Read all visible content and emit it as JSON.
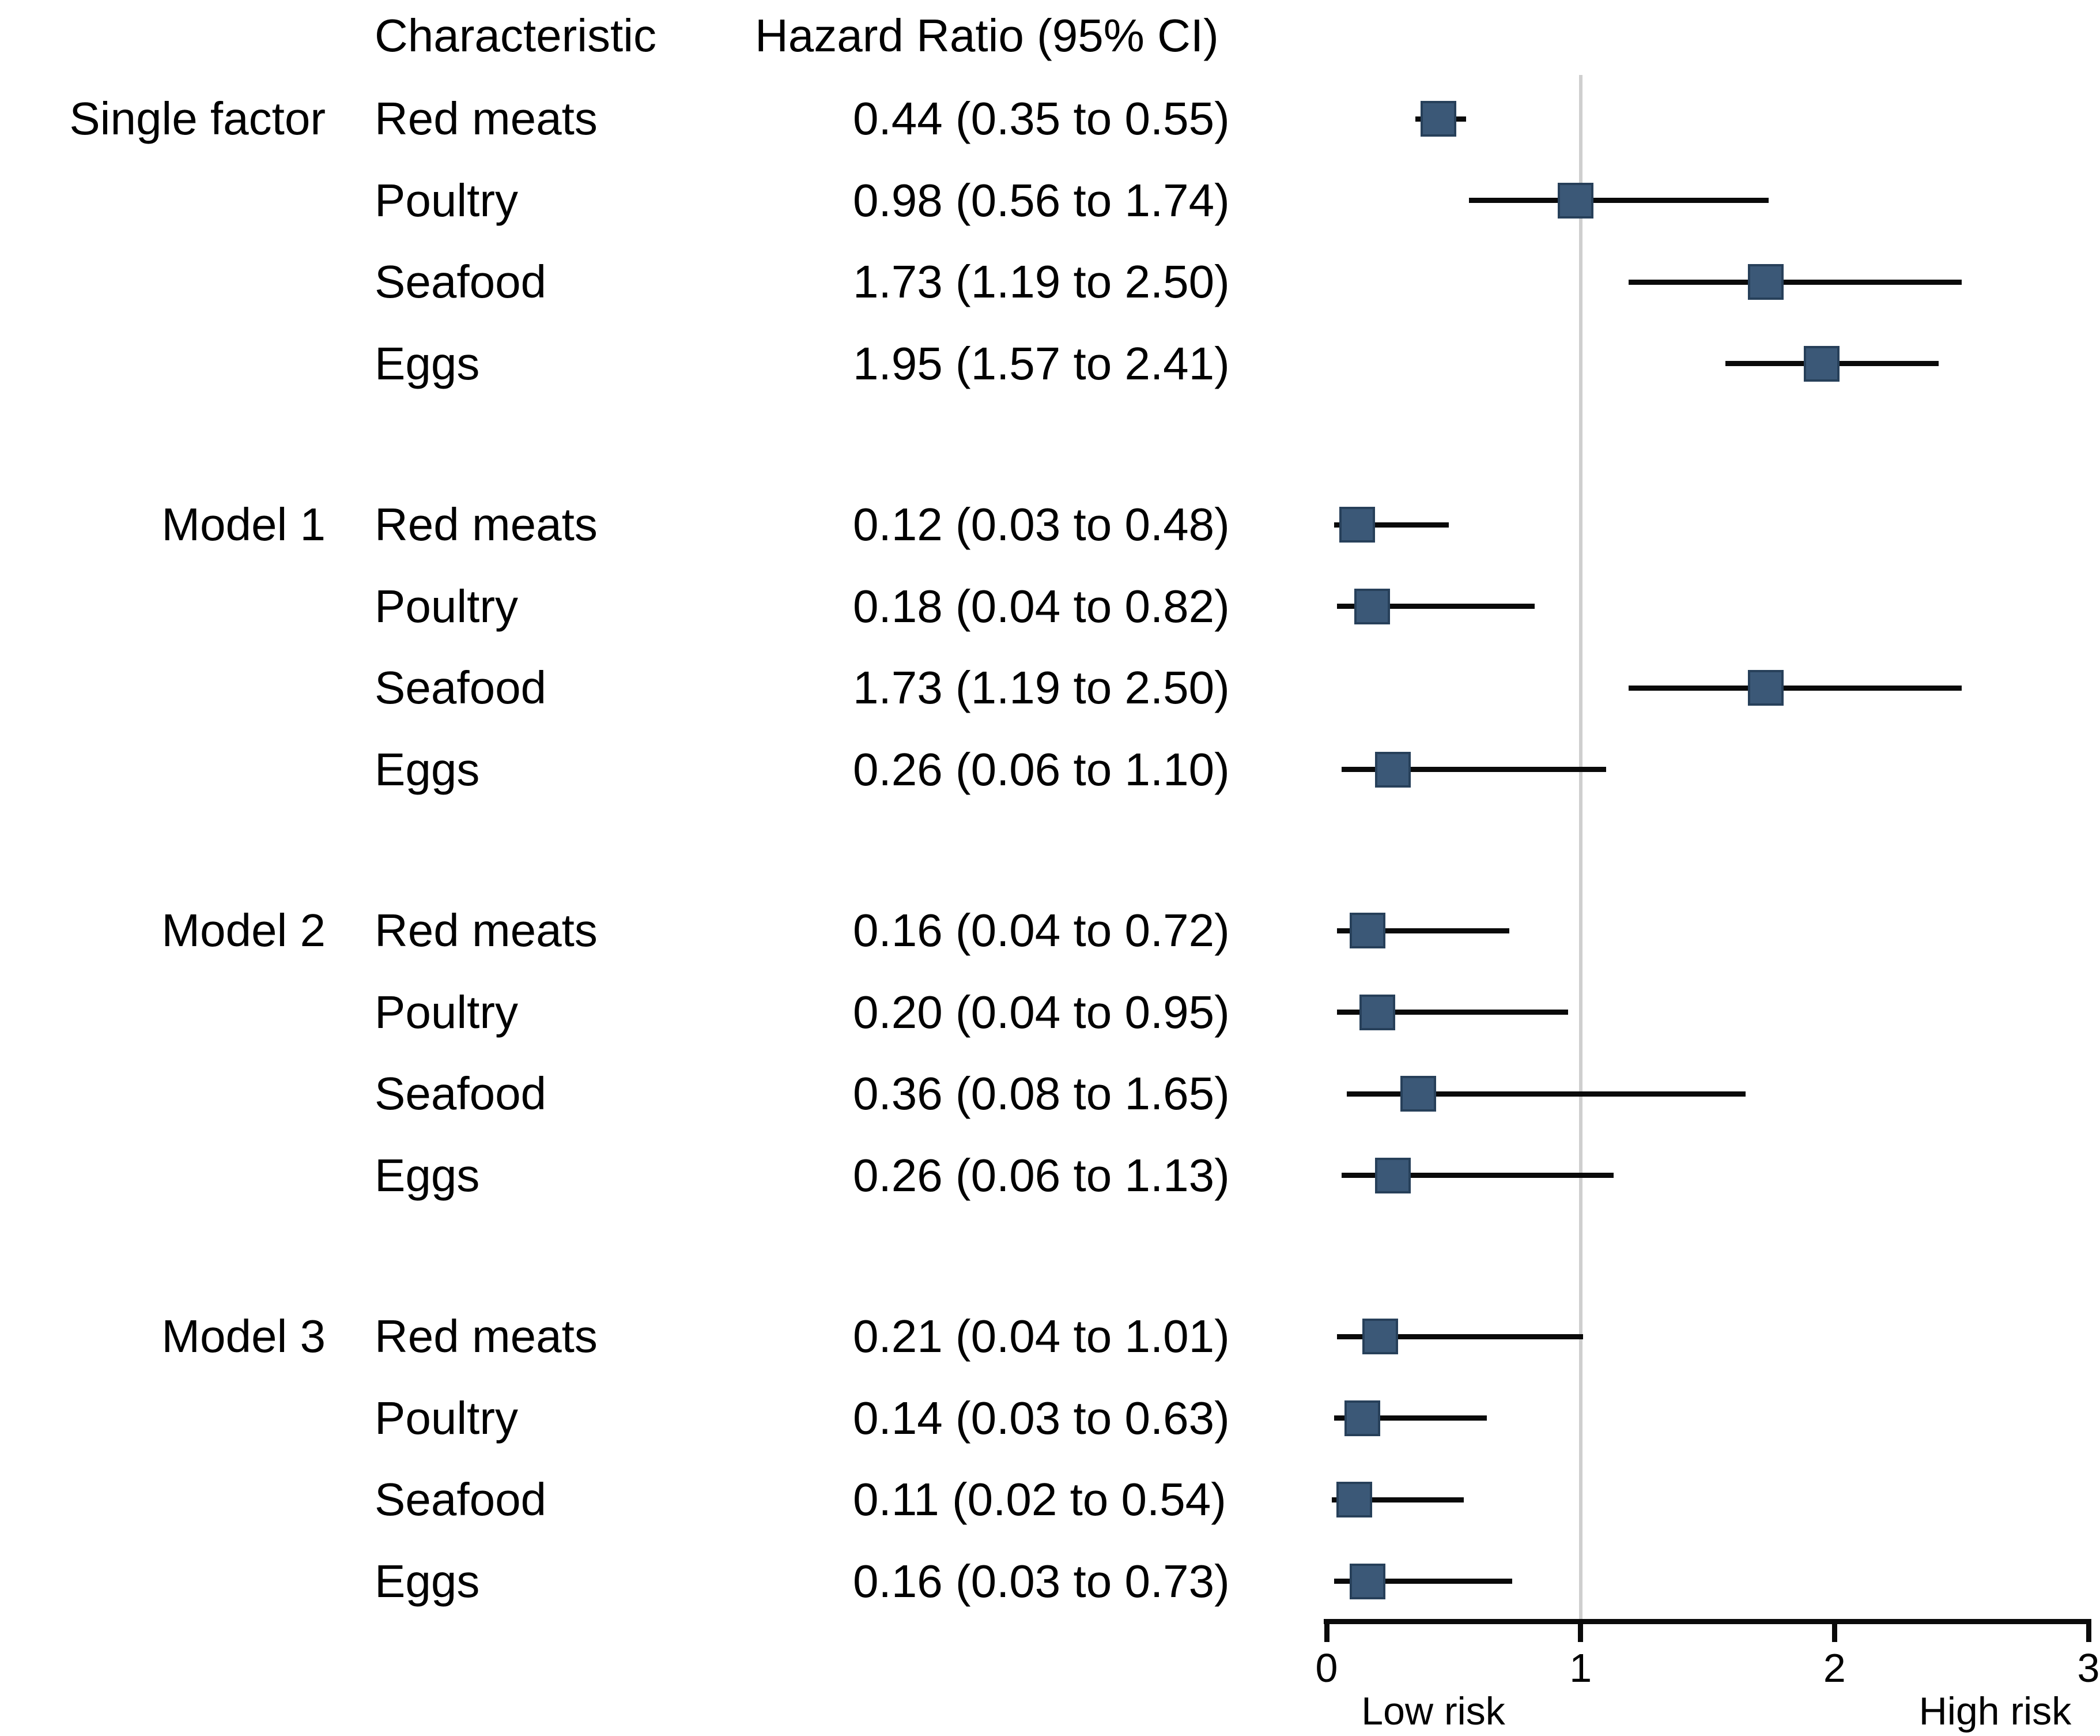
{
  "header": {
    "characteristic": "Characteristic",
    "hazard_ratio": "Hazard Ratio (95% CI)"
  },
  "axis": {
    "min": 0,
    "max": 3,
    "ticks": [
      "0",
      "1",
      "2",
      "3"
    ],
    "tick_values": [
      0,
      1,
      2,
      3
    ],
    "reference_value": 1,
    "low_label": "Low risk",
    "high_label": "High risk"
  },
  "colors": {
    "marker_fill": "#3B5877",
    "marker_border": "#27405A",
    "ci_line": "#0a0a0a",
    "reference_line": "#CFCFCF",
    "axis_line": "#0a0a0a",
    "text": "#000000",
    "background": "#FFFFFF"
  },
  "chart_data": {
    "type": "forest",
    "title": "",
    "xlabel_low": "Low risk",
    "xlabel_high": "High risk",
    "xlim": [
      0,
      3
    ],
    "reference_line": 1,
    "groups": [
      {
        "name": "Single factor",
        "rows": [
          {
            "label": "Red meats",
            "text": "0.44 (0.35 to 0.55)",
            "hr": 0.44,
            "lo": 0.35,
            "hi": 0.55
          },
          {
            "label": "Poultry",
            "text": "0.98 (0.56 to 1.74)",
            "hr": 0.98,
            "lo": 0.56,
            "hi": 1.74
          },
          {
            "label": "Seafood",
            "text": "1.73 (1.19 to 2.50)",
            "hr": 1.73,
            "lo": 1.19,
            "hi": 2.5
          },
          {
            "label": "Eggs",
            "text": "1.95 (1.57 to 2.41)",
            "hr": 1.95,
            "lo": 1.57,
            "hi": 2.41
          }
        ]
      },
      {
        "name": "Model 1",
        "rows": [
          {
            "label": "Red meats",
            "text": "0.12 (0.03 to 0.48)",
            "hr": 0.12,
            "lo": 0.03,
            "hi": 0.48
          },
          {
            "label": "Poultry",
            "text": "0.18 (0.04 to 0.82)",
            "hr": 0.18,
            "lo": 0.04,
            "hi": 0.82
          },
          {
            "label": "Seafood",
            "text": "1.73 (1.19 to 2.50)",
            "hr": 1.73,
            "lo": 1.19,
            "hi": 2.5
          },
          {
            "label": "Eggs",
            "text": "0.26 (0.06 to 1.10)",
            "hr": 0.26,
            "lo": 0.06,
            "hi": 1.1
          }
        ]
      },
      {
        "name": "Model 2",
        "rows": [
          {
            "label": "Red meats",
            "text": "0.16 (0.04 to 0.72)",
            "hr": 0.16,
            "lo": 0.04,
            "hi": 0.72
          },
          {
            "label": "Poultry",
            "text": "0.20 (0.04 to 0.95)",
            "hr": 0.2,
            "lo": 0.04,
            "hi": 0.95
          },
          {
            "label": "Seafood",
            "text": "0.36 (0.08 to 1.65)",
            "hr": 0.36,
            "lo": 0.08,
            "hi": 1.65
          },
          {
            "label": "Eggs",
            "text": "0.26 (0.06 to 1.13)",
            "hr": 0.26,
            "lo": 0.06,
            "hi": 1.13
          }
        ]
      },
      {
        "name": "Model 3",
        "rows": [
          {
            "label": "Red meats",
            "text": "0.21 (0.04 to 1.01)",
            "hr": 0.21,
            "lo": 0.04,
            "hi": 1.01
          },
          {
            "label": "Poultry",
            "text": "0.14 (0.03 to 0.63)",
            "hr": 0.14,
            "lo": 0.03,
            "hi": 0.63
          },
          {
            "label": "Seafood",
            "text": "0.11 (0.02 to 0.54)",
            "hr": 0.11,
            "lo": 0.02,
            "hi": 0.54
          },
          {
            "label": "Eggs",
            "text": "0.16 (0.03 to 0.73)",
            "hr": 0.16,
            "lo": 0.03,
            "hi": 0.73
          }
        ]
      }
    ]
  }
}
